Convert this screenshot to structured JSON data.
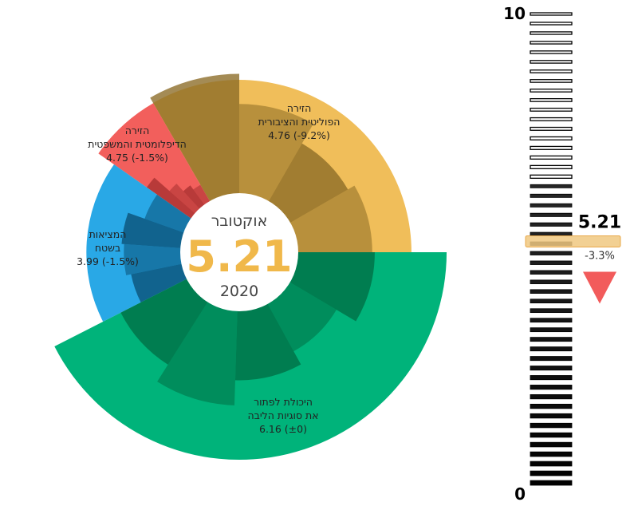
{
  "chart_data": {
    "type": "radial-bar",
    "center": {
      "month": "אוקטובר",
      "value": "5.21",
      "year": "2020"
    },
    "scale": {
      "min": 0,
      "max": 10,
      "min_label": "0",
      "max_label": "10"
    },
    "gauge": {
      "value": 5.21,
      "value_label": "5.21",
      "change_label": "-3.3%",
      "direction": "down",
      "color": "#f0c880",
      "arrow_color": "#f25b5b"
    },
    "segments": [
      {
        "id": "political",
        "label_lines": [
          "הזירה",
          "הפוליטית והציבורית",
          "4.76 (-9.2%)"
        ],
        "value": 4.76,
        "color": "#f0be5a",
        "sub_color": "#8a6a25",
        "sub_values": [
          5.0,
          3.8,
          2.9,
          3.2
        ]
      },
      {
        "id": "diplomatic",
        "label_lines": [
          "הזירה",
          "הדיפלומטית והמשפטית",
          "4.75 (-1.5%)"
        ],
        "value": 4.75,
        "color": "#f25f5c",
        "sub_color": "#a83030",
        "sub_values": [
          2.4,
          1.6,
          1.2,
          1.0
        ]
      },
      {
        "id": "field",
        "label_lines": [
          "המציאות",
          "בשטח",
          "3.99 (-1.5%)"
        ],
        "value": 3.99,
        "color": "#29a8e6",
        "sub_color": "#0a4f74",
        "sub_values": [
          2.3,
          2.5,
          2.6,
          1.9
        ]
      },
      {
        "id": "resolve",
        "label_lines": [
          "היכולת לפתור",
          "את סוגיות הליבה",
          "6.16 (±0)"
        ],
        "value": 6.16,
        "color": "#00b37a",
        "sub_color": "#006e44",
        "sub_values": [
          3.3,
          2.4,
          3.0,
          4.0,
          3.2
        ]
      }
    ]
  }
}
